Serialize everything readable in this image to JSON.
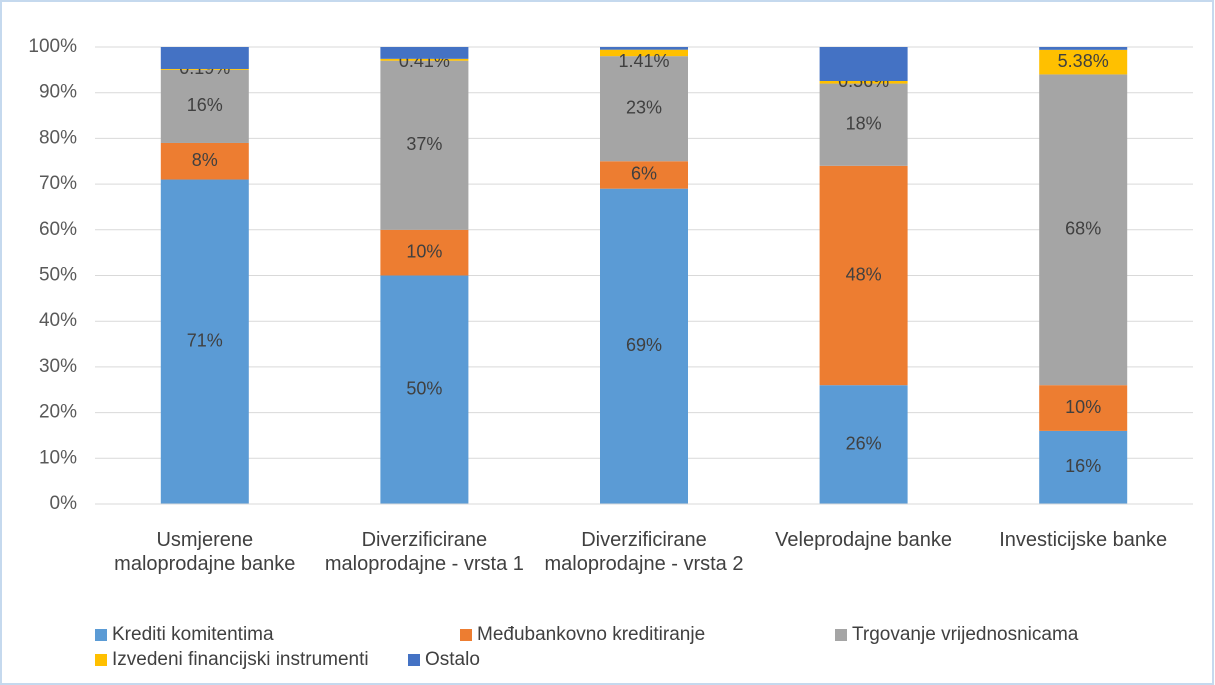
{
  "chart_data": {
    "type": "stacked_bar",
    "categories": [
      "Usmjerene maloprodajne banke",
      "Diverzificirane maloprodajne - vrsta 1",
      "Diverzificirane maloprodajne - vrsta 2",
      "Veleprodajne banke",
      "Investicijske banke"
    ],
    "series": [
      {
        "name": "Krediti komitentima",
        "color": "#5b9bd5",
        "values": [
          71,
          50,
          69,
          26,
          16
        ],
        "value_labels": [
          "71%",
          "50%",
          "69%",
          "26%",
          "16%"
        ]
      },
      {
        "name": "Međubankovno kreditiranje",
        "color": "#ed7d31",
        "values": [
          8,
          10,
          6,
          48,
          10
        ],
        "value_labels": [
          "8%",
          "10%",
          "6%",
          "48%",
          "10%"
        ]
      },
      {
        "name": "Trgovanje vrijednosnicama",
        "color": "#a5a5a5",
        "values": [
          16,
          37,
          23,
          18,
          68
        ],
        "value_labels": [
          "16%",
          "37%",
          "23%",
          "18%",
          "68%"
        ]
      },
      {
        "name": "Izvedeni financijski instrumenti",
        "color": "#ffc000",
        "values": [
          0.19,
          0.41,
          1.41,
          0.56,
          5.38
        ],
        "value_labels": [
          "0.19%",
          "0.41%",
          "1.41%",
          "0.56%",
          "5.38%"
        ]
      },
      {
        "name": "Ostalo",
        "color": "#4472c4",
        "values": [
          4.81,
          2.59,
          0.59,
          7.44,
          0.62
        ]
      }
    ],
    "ylim": [
      0,
      100
    ],
    "yticks": [
      {
        "value": 0,
        "label": "0%"
      },
      {
        "value": 10,
        "label": "10%"
      },
      {
        "value": 20,
        "label": "20%"
      },
      {
        "value": 30,
        "label": "30%"
      },
      {
        "value": 40,
        "label": "40%"
      },
      {
        "value": 50,
        "label": "50%"
      },
      {
        "value": 60,
        "label": "60%"
      },
      {
        "value": 70,
        "label": "70%"
      },
      {
        "value": 80,
        "label": "80%"
      },
      {
        "value": 90,
        "label": "90%"
      },
      {
        "value": 100,
        "label": "100%"
      }
    ],
    "grid": true,
    "legend": "bottom"
  }
}
